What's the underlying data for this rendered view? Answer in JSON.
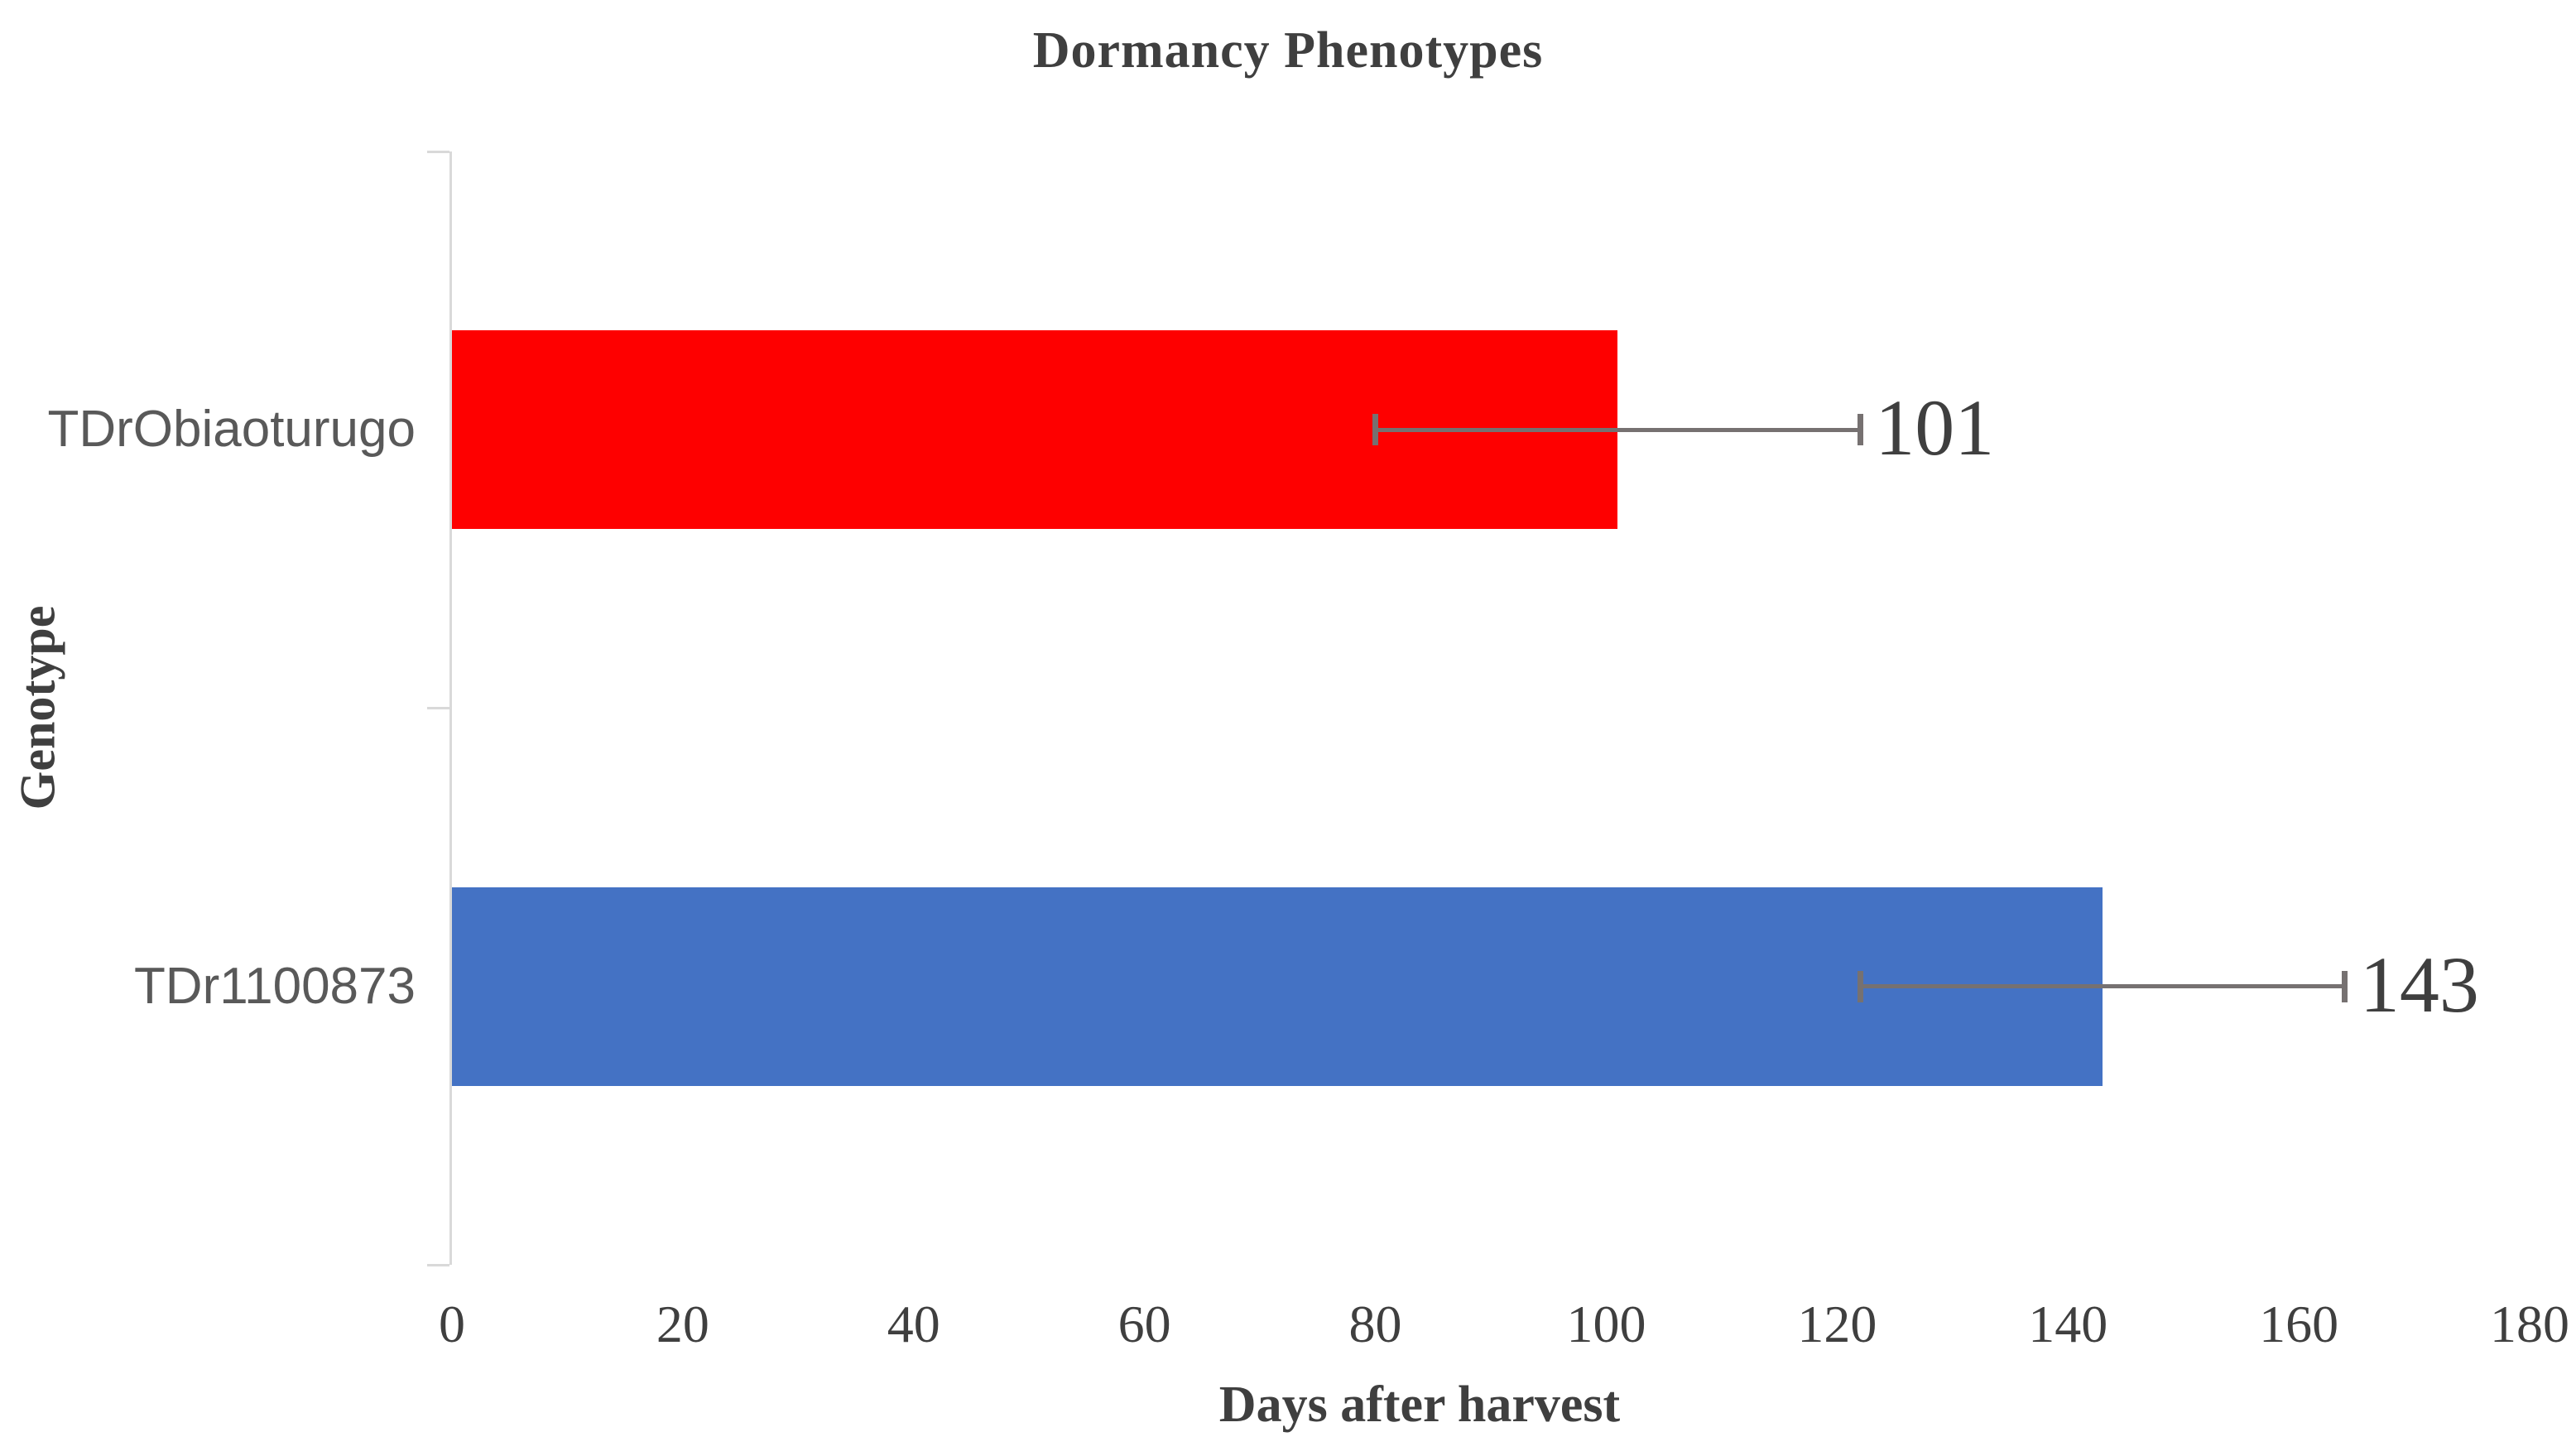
{
  "chart_data": {
    "type": "bar",
    "orientation": "horizontal",
    "title": "Dormancy Phenotypes",
    "xlabel": "Days after harvest",
    "ylabel": "Genotype",
    "categories": [
      "TDrObiaoturugo",
      "TDr1100873"
    ],
    "values": [
      101,
      143
    ],
    "data_labels": [
      "101",
      "143"
    ],
    "bar_colors": [
      "#fe0000",
      "#4472c4"
    ],
    "error_bars": [
      {
        "minus": 21,
        "plus": 21
      },
      {
        "minus": 21,
        "plus": 21
      }
    ],
    "xlim": [
      0,
      180
    ],
    "xticks": [
      0,
      20,
      40,
      60,
      80,
      100,
      120,
      140,
      160,
      180
    ],
    "grid": false,
    "legend": "none",
    "colors": {
      "axis_line": "#d9d9d9",
      "error_bar": "#767171",
      "chart_text": "#3f3f3f",
      "category_text": "#595959",
      "background": "#ffffff"
    }
  }
}
